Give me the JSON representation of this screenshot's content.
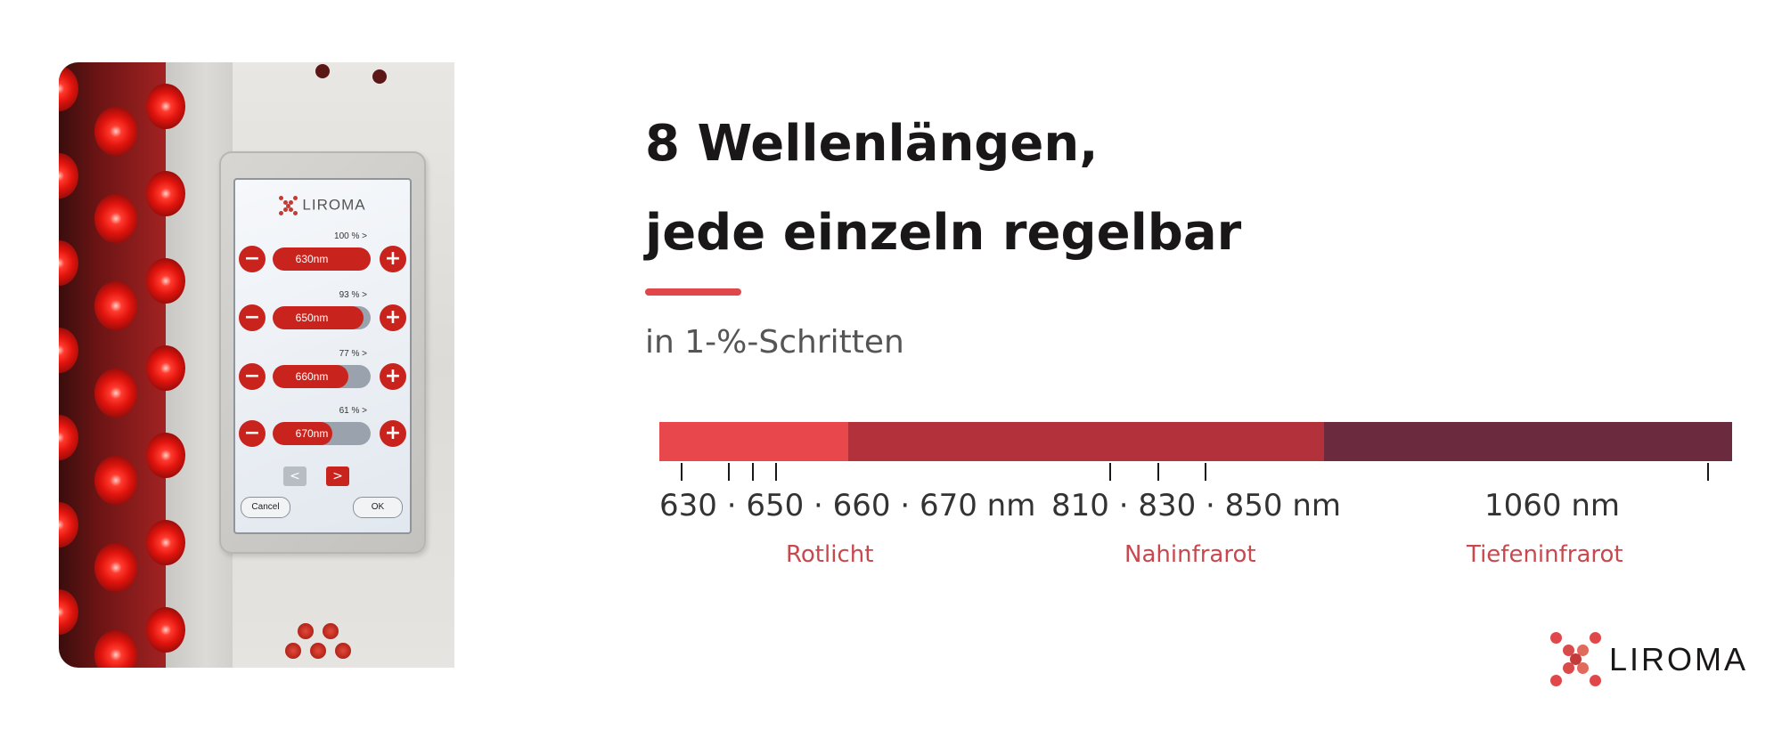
{
  "headline": {
    "line1": "8 Wellenlängen,",
    "line2": "jede einzeln regelbar"
  },
  "subheadline": "in 1-%-Schritten",
  "device_screen": {
    "brand": "LIROMA",
    "rows": [
      {
        "percent_label": "100 % >",
        "wavelength": "630nm",
        "level": 1.0
      },
      {
        "percent_label": "93 % >",
        "wavelength": "650nm",
        "level": 0.93
      },
      {
        "percent_label": "77 % >",
        "wavelength": "660nm",
        "level": 0.77
      },
      {
        "percent_label": "61 % >",
        "wavelength": "670nm",
        "level": 0.61
      }
    ],
    "minus_symbol": "−",
    "plus_symbol": "+",
    "prev_symbol": "<",
    "next_symbol": ">",
    "cancel_label": "Cancel",
    "ok_label": "OK"
  },
  "spectrum": {
    "groups": [
      {
        "wavelengths_label": "630 · 650 · 660 · 670 nm",
        "band_label": "Rotlicht",
        "color": "#e8484c"
      },
      {
        "wavelengths_label": "810 · 830 · 850 nm",
        "band_label": "Nahinfrarot",
        "color": "#b3313b"
      },
      {
        "wavelengths_label": "1060 nm",
        "band_label": "Tiefeninfrarot",
        "color": "#6b2a3d"
      }
    ],
    "wavelengths_nm": [
      630,
      650,
      660,
      670,
      810,
      830,
      850,
      1060
    ]
  },
  "brand_logo": {
    "wordmark": "LIROMA",
    "color": "#e0474a"
  },
  "colors": {
    "accent": "#e0474a",
    "title_text": "#1a1718",
    "band_text": "#c9484e"
  }
}
